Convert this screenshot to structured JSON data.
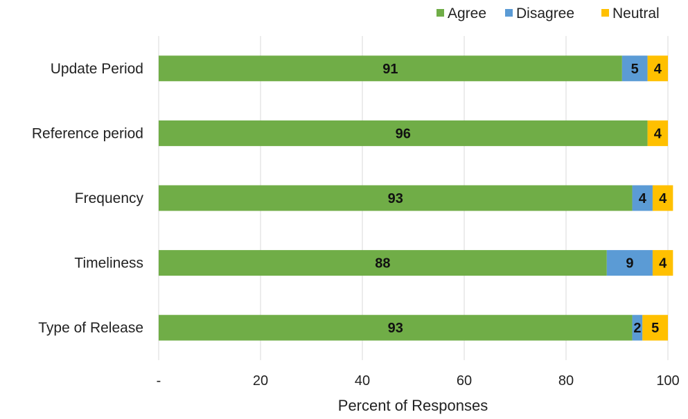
{
  "chart_data": {
    "type": "bar",
    "orientation": "horizontal",
    "stacked": true,
    "categories": [
      "Update Period",
      "Reference period",
      "Frequency",
      "Timeliness",
      "Type of Release"
    ],
    "series": [
      {
        "name": "Agree",
        "color": "#70ad47",
        "values": [
          91,
          96,
          93,
          88,
          93
        ],
        "labels": [
          "91",
          "96",
          "93",
          "88",
          "93"
        ]
      },
      {
        "name": "Disagree",
        "color": "#5b9bd5",
        "values": [
          5,
          0,
          4,
          9,
          2
        ],
        "labels": [
          "5",
          "",
          "4",
          "9",
          "2"
        ]
      },
      {
        "name": "Neutral",
        "color": "#ffc000",
        "values": [
          4,
          4,
          4,
          4,
          5
        ],
        "labels": [
          "4",
          "4",
          "4",
          "4",
          "5"
        ]
      }
    ],
    "xlabel": "Percent of Responses",
    "ylabel": "",
    "xlim": [
      0,
      100
    ],
    "xticks": [
      "-",
      "20",
      "40",
      "60",
      "80",
      "100"
    ],
    "grid": "vertical",
    "legend": "top-right"
  }
}
